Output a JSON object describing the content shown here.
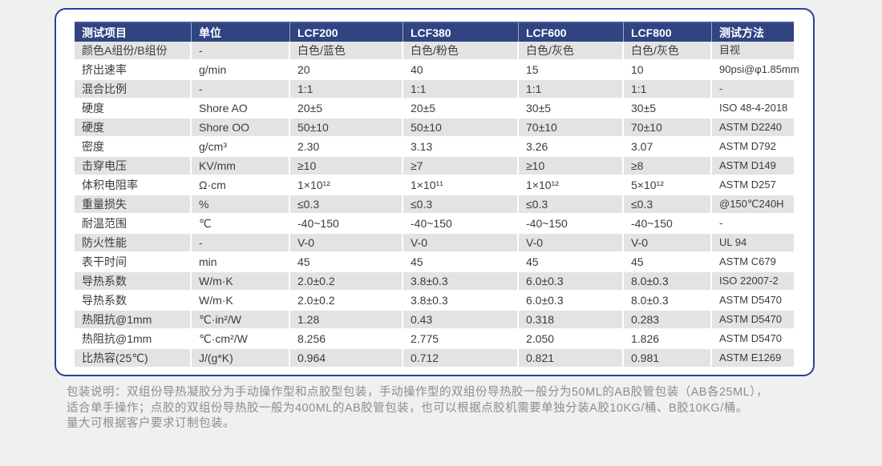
{
  "colors": {
    "header_bg": "#2F4480",
    "card_border": "#2A3F9D",
    "stripe": "#E3E3E3",
    "text": "#3C3C3C",
    "footer_text": "#8D8D8D",
    "page_bg": "#F0F0F0"
  },
  "table": {
    "headers": [
      "测试项目",
      "单位",
      "LCF200",
      "LCF380",
      "LCF600",
      "LCF800",
      "测试方法"
    ],
    "rows": [
      [
        "颜色A组份/B组份",
        "-",
        "白色/蓝色",
        "白色/粉色",
        "白色/灰色",
        "白色/灰色",
        "目视"
      ],
      [
        "挤出速率",
        "g/min",
        "20",
        "40",
        "15",
        "10",
        "90psi@φ1.85mm"
      ],
      [
        "混合比例",
        "-",
        "1:1",
        "1:1",
        "1:1",
        "1:1",
        "-"
      ],
      [
        "硬度",
        "Shore AO",
        "20±5",
        "20±5",
        "30±5",
        "30±5",
        "ISO 48-4-2018"
      ],
      [
        "硬度",
        "Shore OO",
        "50±10",
        "50±10",
        "70±10",
        "70±10",
        "ASTM D2240"
      ],
      [
        "密度",
        "g/cm³",
        "2.30",
        "3.13",
        "3.26",
        "3.07",
        "ASTM D792"
      ],
      [
        "击穿电压",
        "KV/mm",
        "≥10",
        "≥7",
        "≥10",
        "≥8",
        "ASTM D149"
      ],
      [
        "体积电阻率",
        "Ω·cm",
        "1×10¹²",
        "1×10¹¹",
        "1×10¹²",
        "5×10¹²",
        "ASTM D257"
      ],
      [
        "重量损失",
        "%",
        "≤0.3",
        "≤0.3",
        "≤0.3",
        "≤0.3",
        "@150℃240H"
      ],
      [
        "耐温范围",
        "℃",
        "-40~150",
        "-40~150",
        "-40~150",
        "-40~150",
        "-"
      ],
      [
        "防火性能",
        "-",
        "V-0",
        "V-0",
        "V-0",
        "V-0",
        "UL 94"
      ],
      [
        "表干时间",
        "min",
        "45",
        "45",
        "45",
        "45",
        "ASTM C679"
      ],
      [
        "导热系数",
        "W/m·K",
        "2.0±0.2",
        "3.8±0.3",
        "6.0±0.3",
        "8.0±0.3",
        "ISO 22007-2"
      ],
      [
        "导热系数",
        "W/m·K",
        "2.0±0.2",
        "3.8±0.3",
        "6.0±0.3",
        "8.0±0.3",
        "ASTM D5470"
      ],
      [
        "热阻抗@1mm",
        "℃·in²/W",
        "1.28",
        "0.43",
        "0.318",
        "0.283",
        "ASTM D5470"
      ],
      [
        "热阻抗@1mm",
        "℃·cm²/W",
        "8.256",
        "2.775",
        "2.050",
        "1.826",
        "ASTM D5470"
      ],
      [
        "比热容(25℃)",
        "J/(g*K)",
        "0.964",
        "0.712",
        "0.821",
        "0.981",
        "ASTM E1269"
      ]
    ]
  },
  "footer": {
    "lines": [
      "包装说明：双组份导热凝胶分为手动操作型和点胶型包装，手动操作型的双组份导热胶一般分为50ML的AB胶管包装（AB各25ML），",
      "适合单手操作；点胶的双组份导热胶一般为400ML的AB胶管包装，也可以根据点胶机需要单独分装A胶10KG/桶、B胶10KG/桶。",
      "量大可根据客户要求订制包装。"
    ]
  }
}
